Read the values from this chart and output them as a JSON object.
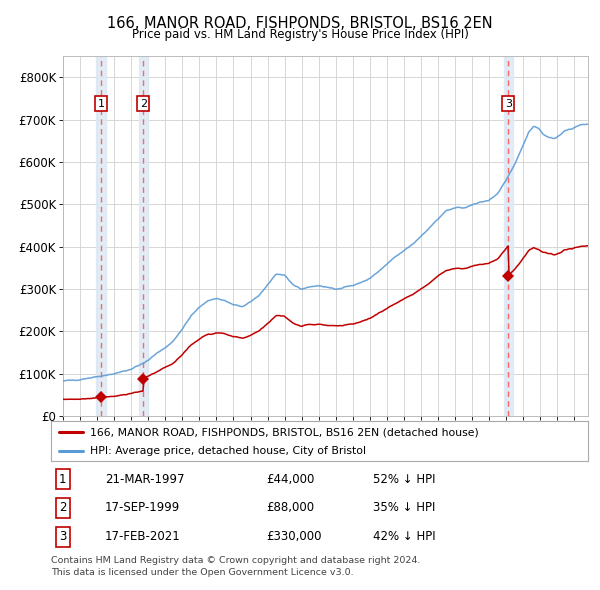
{
  "title": "166, MANOR ROAD, FISHPONDS, BRISTOL, BS16 2EN",
  "subtitle": "Price paid vs. HM Land Registry's House Price Index (HPI)",
  "legend_line1": "166, MANOR ROAD, FISHPONDS, BRISTOL, BS16 2EN (detached house)",
  "legend_line2": "HPI: Average price, detached house, City of Bristol",
  "footer1": "Contains HM Land Registry data © Crown copyright and database right 2024.",
  "footer2": "This data is licensed under the Open Government Licence v3.0.",
  "sales": [
    {
      "label": "1",
      "date": "21-MAR-1997",
      "price": 44000,
      "note": "52% ↓ HPI",
      "x_year": 1997.22
    },
    {
      "label": "2",
      "date": "17-SEP-1999",
      "price": 88000,
      "note": "35% ↓ HPI",
      "x_year": 1999.71
    },
    {
      "label": "3",
      "date": "17-FEB-2021",
      "price": 330000,
      "note": "42% ↓ HPI",
      "x_year": 2021.13
    }
  ],
  "hpi_color": "#5b9bd5",
  "price_color": "#c00000",
  "sale_dot_color": "#c00000",
  "vline_color": "#ff6666",
  "shade_color": "#dce9f5",
  "label_box_color": "#c00000",
  "grid_color": "#d0d0d0",
  "bg_color": "#ffffff",
  "yticks": [
    0,
    100000,
    200000,
    300000,
    400000,
    500000,
    600000,
    700000,
    800000
  ],
  "ylabels": [
    "£0",
    "£100K",
    "£200K",
    "£300K",
    "£400K",
    "£500K",
    "£600K",
    "£700K",
    "£800K"
  ],
  "ylim": [
    0,
    850000
  ],
  "xlim_start": 1995.0,
  "xlim_end": 2025.8
}
